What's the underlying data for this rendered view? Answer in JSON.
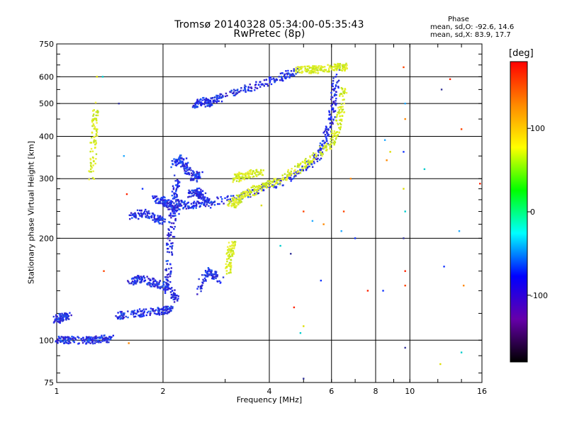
{
  "chart_data": {
    "type": "scatter",
    "title": "Tromsø 20140328 05:34:00-05:35:43",
    "subtitle": "RwPretec (8p)",
    "xlabel": "Frequency [MHz]",
    "ylabel": "Stationary phase Virtual Height [km]",
    "xscale": "log",
    "yscale": "log",
    "xlim": [
      1,
      16
    ],
    "ylim": [
      75,
      750
    ],
    "xticks": [
      1,
      2,
      4,
      6,
      8,
      10,
      16
    ],
    "yticks": [
      75,
      100,
      200,
      300,
      400,
      500,
      600,
      750
    ],
    "xgrid": [
      2,
      4,
      6,
      8,
      10
    ],
    "ygrid": [
      100,
      200,
      300,
      400,
      500,
      600
    ],
    "grid": true,
    "phase_legend": {
      "title": "Phase",
      "line1": "mean, sd,O: -92.6, 14.6",
      "line2": "mean, sd,X:  83.9, 17.7"
    },
    "colorbar": {
      "label": "[deg]",
      "range": [
        -180,
        180
      ],
      "ticks": [
        100,
        0,
        -100
      ],
      "colors": [
        "#ff0000",
        "#ff8800",
        "#ffff00",
        "#00ff00",
        "#00ffff",
        "#0000ff",
        "#6600aa",
        "#000000"
      ]
    },
    "series": [
      {
        "phase": "O",
        "segments": [
          {
            "x": [
              1.0,
              1.05,
              1.15,
              1.25,
              1.35,
              1.42
            ],
            "y": [
              100,
              100,
              100,
              100,
              101,
              101
            ]
          },
          {
            "x": [
              1.0,
              1.04,
              1.08
            ],
            "y": [
              115,
              117,
              118
            ]
          },
          {
            "x": [
              1.45,
              1.6,
              1.8,
              2.0,
              2.1
            ],
            "y": [
              118,
              119,
              121,
              122,
              123
            ]
          },
          {
            "x": [
              1.62,
              1.7,
              1.8,
              1.95,
              2.1,
              2.2
            ],
            "y": [
              148,
              152,
              150,
              146,
              140,
              132
            ]
          },
          {
            "x": [
              1.62,
              1.75,
              1.9,
              2.0
            ],
            "y": [
              230,
              238,
              228,
              225
            ]
          },
          {
            "x": [
              1.9,
              2.0,
              2.1,
              2.2
            ],
            "y": [
              260,
              258,
              250,
              240
            ]
          },
          {
            "x": [
              2.05,
              2.08,
              2.12,
              2.15,
              2.2
            ],
            "y": [
              140,
              180,
              220,
              260,
              300
            ]
          },
          {
            "x": [
              2.2,
              2.3,
              2.5,
              3.0,
              3.5,
              4.0,
              4.5,
              5.0,
              5.5,
              5.8,
              6.0,
              6.1,
              6.2
            ],
            "y": [
              255,
              250,
              252,
              260,
              272,
              285,
              300,
              320,
              350,
              400,
              450,
              520,
              620
            ]
          },
          {
            "x": [
              2.4,
              2.5,
              2.6,
              2.7
            ],
            "y": [
              270,
              275,
              265,
              250
            ]
          },
          {
            "x": [
              2.45,
              2.55,
              2.7,
              2.9,
              3.2,
              3.6,
              4.0,
              4.4,
              4.8
            ],
            "y": [
              495,
              510,
              500,
              520,
              540,
              560,
              580,
              600,
              625
            ]
          },
          {
            "x": [
              2.15,
              2.25,
              2.35,
              2.45,
              2.55
            ],
            "y": [
              330,
              345,
              320,
              300,
              310
            ]
          },
          {
            "x": [
              2.5,
              2.7,
              2.9
            ],
            "y": [
              140,
              160,
              150
            ]
          }
        ]
      },
      {
        "phase": "X",
        "segments": [
          {
            "x": [
              3.1,
              3.2,
              3.3,
              3.5,
              3.8,
              4.2,
              4.6,
              5.0,
              5.5,
              6.0,
              6.2,
              6.4,
              6.5
            ],
            "y": [
              250,
              255,
              262,
              272,
              285,
              295,
              310,
              330,
              355,
              380,
              420,
              480,
              560
            ]
          },
          {
            "x": [
              3.2,
              3.3,
              3.5,
              3.8
            ],
            "y": [
              300,
              305,
              310,
              315
            ]
          },
          {
            "x": [
              3.05,
              3.1,
              3.15
            ],
            "y": [
              160,
              180,
              195
            ]
          },
          {
            "x": [
              1.25,
              1.28,
              1.3
            ],
            "y": [
              300,
              400,
              500
            ]
          },
          {
            "x": [
              4.8,
              5.2,
              5.6,
              6.1,
              6.4,
              6.6
            ],
            "y": [
              625,
              630,
              630,
              640,
              640,
              640
            ]
          }
        ]
      },
      {
        "phase": "noise",
        "points": [
          {
            "x": 9.6,
            "y": 640
          },
          {
            "x": 9.7,
            "y": 500
          },
          {
            "x": 9.7,
            "y": 450
          },
          {
            "x": 9.6,
            "y": 360
          },
          {
            "x": 9.6,
            "y": 280
          },
          {
            "x": 9.7,
            "y": 240
          },
          {
            "x": 9.6,
            "y": 200
          },
          {
            "x": 9.7,
            "y": 160
          },
          {
            "x": 9.7,
            "y": 145
          },
          {
            "x": 8.5,
            "y": 390
          },
          {
            "x": 8.6,
            "y": 340
          },
          {
            "x": 8.4,
            "y": 140
          },
          {
            "x": 8.8,
            "y": 360
          },
          {
            "x": 11.0,
            "y": 320
          },
          {
            "x": 12.3,
            "y": 550
          },
          {
            "x": 13.0,
            "y": 590
          },
          {
            "x": 14.0,
            "y": 420
          },
          {
            "x": 13.8,
            "y": 210
          },
          {
            "x": 14.2,
            "y": 145
          },
          {
            "x": 12.5,
            "y": 165
          },
          {
            "x": 12.2,
            "y": 85
          },
          {
            "x": 14.0,
            "y": 92
          },
          {
            "x": 9.7,
            "y": 95
          },
          {
            "x": 15.8,
            "y": 290
          },
          {
            "x": 5.0,
            "y": 240
          },
          {
            "x": 5.3,
            "y": 225
          },
          {
            "x": 5.7,
            "y": 220
          },
          {
            "x": 5.6,
            "y": 150
          },
          {
            "x": 5.0,
            "y": 110
          },
          {
            "x": 4.9,
            "y": 105
          },
          {
            "x": 4.6,
            "y": 180
          },
          {
            "x": 4.7,
            "y": 125
          },
          {
            "x": 6.5,
            "y": 240
          },
          {
            "x": 6.4,
            "y": 210
          },
          {
            "x": 6.8,
            "y": 300
          },
          {
            "x": 7.0,
            "y": 200
          },
          {
            "x": 1.3,
            "y": 600
          },
          {
            "x": 1.35,
            "y": 600
          },
          {
            "x": 1.5,
            "y": 500
          },
          {
            "x": 1.58,
            "y": 270
          },
          {
            "x": 1.36,
            "y": 160
          },
          {
            "x": 1.55,
            "y": 350
          },
          {
            "x": 1.6,
            "y": 98
          },
          {
            "x": 1.75,
            "y": 280
          },
          {
            "x": 3.8,
            "y": 250
          },
          {
            "x": 4.3,
            "y": 190
          },
          {
            "x": 5.0,
            "y": 77
          },
          {
            "x": 7.6,
            "y": 140
          }
        ]
      }
    ]
  }
}
